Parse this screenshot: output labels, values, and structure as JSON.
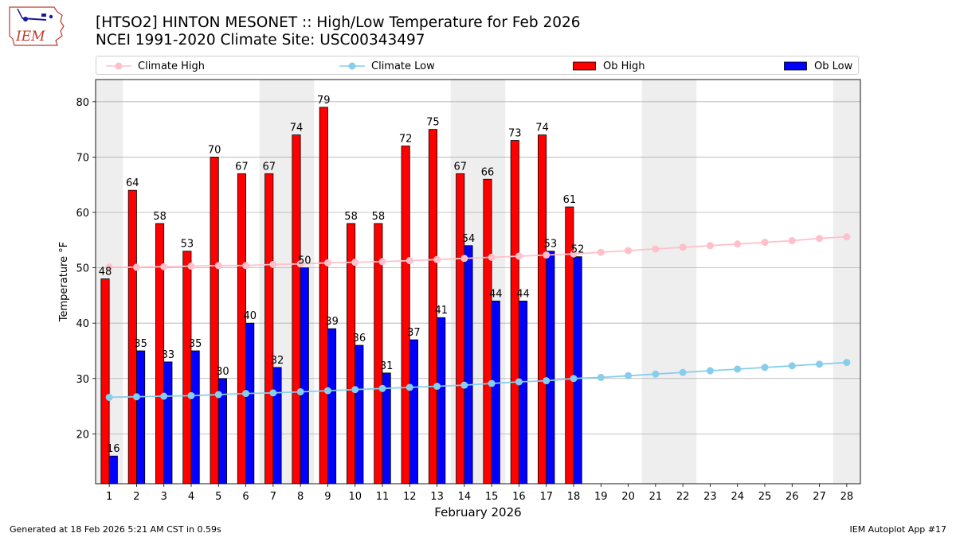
{
  "header": {
    "title_line1": "[HTSO2] HINTON MESONET :: High/Low Temperature for Feb 2026",
    "title_line2": "NCEI 1991-2020 Climate Site: USC00343497"
  },
  "logo": {
    "text": "IEM"
  },
  "footer": {
    "left": "Generated at 18 Feb 2026 5:21 AM CST in 0.59s",
    "right": "IEM Autoplot App #17"
  },
  "colors": {
    "ob_high": "#ff0000",
    "ob_low": "#0000ff",
    "climate_high": "#ffc0cb",
    "climate_low": "#87ceeb",
    "weekend_shade": "#eeeeee",
    "grid": "#b0b0b0"
  },
  "chart_data": {
    "type": "bar",
    "xlabel": "February 2026",
    "ylabel": "Temperature °F",
    "ylim": [
      11,
      84
    ],
    "yticks": [
      20,
      30,
      40,
      50,
      60,
      70,
      80
    ],
    "grid": "horizontal",
    "legend": "top",
    "categories": [
      "1",
      "2",
      "3",
      "4",
      "5",
      "6",
      "7",
      "8",
      "9",
      "10",
      "11",
      "12",
      "13",
      "14",
      "15",
      "16",
      "17",
      "18",
      "19",
      "20",
      "21",
      "22",
      "23",
      "24",
      "25",
      "26",
      "27",
      "28"
    ],
    "shaded_days": [
      1,
      7,
      8,
      14,
      15,
      21,
      22,
      28
    ],
    "series": [
      {
        "name": "Climate High",
        "kind": "line",
        "values": [
          50.1,
          50.1,
          50.2,
          50.3,
          50.4,
          50.4,
          50.6,
          50.7,
          50.9,
          51.0,
          51.1,
          51.3,
          51.5,
          51.7,
          51.9,
          52.1,
          52.3,
          52.5,
          52.8,
          53.1,
          53.4,
          53.7,
          54.0,
          54.3,
          54.6,
          54.9,
          55.3,
          55.6
        ]
      },
      {
        "name": "Climate Low",
        "kind": "line",
        "values": [
          26.6,
          26.7,
          26.8,
          26.9,
          27.1,
          27.3,
          27.4,
          27.6,
          27.8,
          28.0,
          28.2,
          28.4,
          28.6,
          28.8,
          29.1,
          29.4,
          29.6,
          30.0,
          30.2,
          30.5,
          30.8,
          31.1,
          31.4,
          31.7,
          32.0,
          32.3,
          32.6,
          32.9
        ]
      },
      {
        "name": "Ob High",
        "kind": "bar",
        "values": [
          48,
          64,
          58,
          53,
          70,
          67,
          67,
          74,
          79,
          58,
          58,
          72,
          75,
          67,
          66,
          73,
          74,
          61,
          null,
          null,
          null,
          null,
          null,
          null,
          null,
          null,
          null,
          null
        ]
      },
      {
        "name": "Ob Low",
        "kind": "bar",
        "values": [
          16,
          35,
          33,
          35,
          30,
          40,
          32,
          50,
          39,
          36,
          31,
          37,
          41,
          54,
          44,
          44,
          53,
          52,
          null,
          null,
          null,
          null,
          null,
          null,
          null,
          null,
          null,
          null
        ]
      }
    ]
  }
}
